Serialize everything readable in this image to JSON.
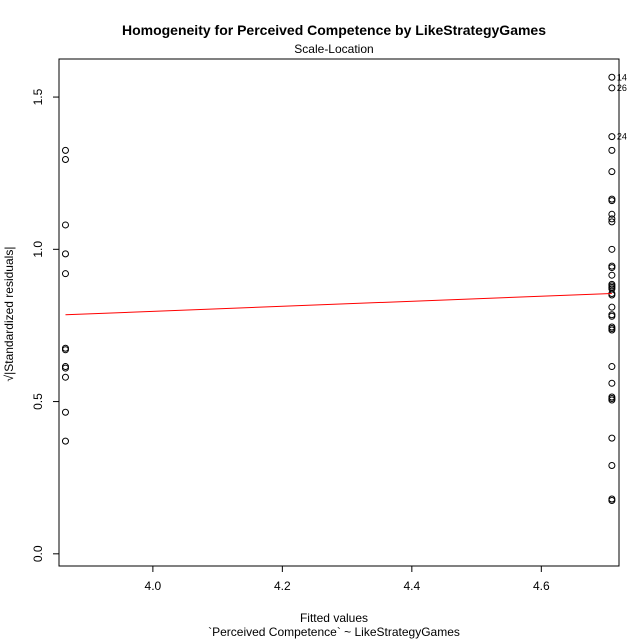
{
  "chart_data": {
    "type": "scatter",
    "title": "Homogeneity for Perceived Competence by LikeStrategyGames",
    "subtitle": "Scale-Location",
    "xlabel": "Fitted values",
    "ylabel": "√|Standardized residuals|",
    "caption": "`Perceived Competence` ~ LikeStrategyGames",
    "xlim": [
      3.855,
      4.72
    ],
    "ylim": [
      -0.04,
      1.625
    ],
    "xticks": [
      4.0,
      4.2,
      4.4,
      4.6
    ],
    "xtick_labels": [
      "4.0",
      "4.2",
      "4.4",
      "4.6"
    ],
    "yticks": [
      0.0,
      0.5,
      1.0,
      1.5
    ],
    "ytick_labels": [
      "0.0",
      "0.5",
      "1.0",
      "1.5"
    ],
    "grid": false,
    "legend": "none",
    "point_color": "#000000",
    "line_color": "#ff0000",
    "groups": [
      {
        "x": 3.865,
        "y": [
          1.325,
          1.295,
          1.08,
          0.985,
          0.92,
          0.675,
          0.67,
          0.615,
          0.61,
          0.58,
          0.465,
          0.37
        ]
      },
      {
        "x": 4.709,
        "y": [
          1.565,
          1.53,
          1.37,
          1.325,
          1.255,
          1.165,
          1.16,
          1.115,
          1.1,
          1.09,
          1.0,
          0.945,
          0.94,
          0.915,
          0.885,
          0.88,
          0.875,
          0.87,
          0.855,
          0.85,
          0.81,
          0.785,
          0.78,
          0.745,
          0.74,
          0.735,
          0.615,
          0.56,
          0.515,
          0.51,
          0.505,
          0.38,
          0.29,
          0.18,
          0.175
        ]
      }
    ],
    "point_labels": [
      {
        "text": "14",
        "x": 4.709,
        "y": 1.565
      },
      {
        "text": "26",
        "x": 4.709,
        "y": 1.53
      },
      {
        "text": "24",
        "x": 4.709,
        "y": 1.37
      }
    ],
    "smooth_line": {
      "x": [
        3.865,
        4.709
      ],
      "y": [
        0.785,
        0.855
      ]
    }
  }
}
